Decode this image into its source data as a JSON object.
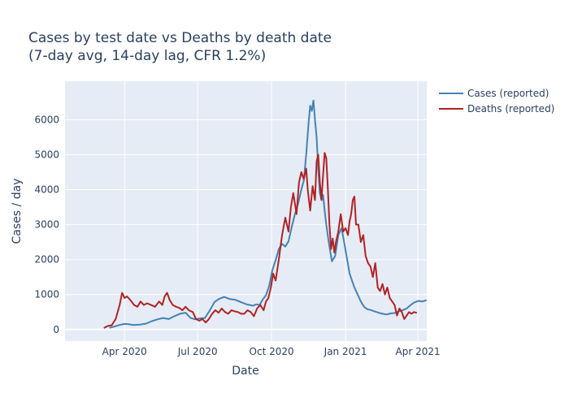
{
  "chart_data": {
    "type": "line",
    "title_line1": "Cases by test date vs Deaths by death date",
    "title_line2": "(7-day avg, 14-day lag, CFR 1.2%)",
    "xlabel": "Date",
    "ylabel": "Cases / day",
    "x_range": [
      "2020-01-18",
      "2021-04-12"
    ],
    "ylim": [
      -330,
      7100
    ],
    "x_ticks": [
      {
        "date": "2020-04-01",
        "label": "Apr 2020"
      },
      {
        "date": "2020-07-01",
        "label": "Jul 2020"
      },
      {
        "date": "2020-10-01",
        "label": "Oct 2020"
      },
      {
        "date": "2021-01-01",
        "label": "Jan 2021"
      },
      {
        "date": "2021-04-01",
        "label": "Apr 2021"
      }
    ],
    "y_ticks": [
      0,
      1000,
      2000,
      3000,
      4000,
      5000,
      6000
    ],
    "grid": true,
    "legend_position": "top-right",
    "plot_bg": "#e5ecf6",
    "series": [
      {
        "name": "Cases (reported)",
        "color": "#4682b4",
        "x": [
          "2020-03-14",
          "2020-03-20",
          "2020-03-26",
          "2020-04-01",
          "2020-04-06",
          "2020-04-12",
          "2020-04-20",
          "2020-04-28",
          "2020-05-05",
          "2020-05-12",
          "2020-05-19",
          "2020-05-26",
          "2020-06-02",
          "2020-06-09",
          "2020-06-16",
          "2020-06-22",
          "2020-06-28",
          "2020-07-04",
          "2020-07-10",
          "2020-07-16",
          "2020-07-22",
          "2020-07-28",
          "2020-08-03",
          "2020-08-10",
          "2020-08-17",
          "2020-08-24",
          "2020-08-31",
          "2020-09-04",
          "2020-09-08",
          "2020-09-12",
          "2020-09-16",
          "2020-09-20",
          "2020-09-24",
          "2020-09-28",
          "2020-10-02",
          "2020-10-06",
          "2020-10-10",
          "2020-10-14",
          "2020-10-18",
          "2020-10-22",
          "2020-10-26",
          "2020-10-30",
          "2020-11-03",
          "2020-11-07",
          "2020-11-10",
          "2020-11-13",
          "2020-11-16",
          "2020-11-18",
          "2020-11-20",
          "2020-11-22",
          "2020-11-24",
          "2020-11-26",
          "2020-11-28",
          "2020-11-30",
          "2020-12-02",
          "2020-12-04",
          "2020-12-06",
          "2020-12-08",
          "2020-12-11",
          "2020-12-15",
          "2020-12-19",
          "2020-12-23",
          "2020-12-27",
          "2020-12-31",
          "2021-01-03",
          "2021-01-06",
          "2021-01-09",
          "2021-01-12",
          "2021-01-16",
          "2021-01-20",
          "2021-01-24",
          "2021-01-28",
          "2021-02-01",
          "2021-02-06",
          "2021-02-11",
          "2021-02-16",
          "2021-02-21",
          "2021-02-26",
          "2021-03-03",
          "2021-03-08",
          "2021-03-13",
          "2021-03-18",
          "2021-03-23",
          "2021-03-28",
          "2021-04-02",
          "2021-04-06",
          "2021-04-11"
        ],
        "y": [
          50,
          90,
          130,
          160,
          150,
          130,
          140,
          170,
          240,
          290,
          330,
          300,
          380,
          450,
          480,
          330,
          290,
          320,
          330,
          540,
          790,
          880,
          930,
          870,
          850,
          780,
          720,
          700,
          680,
          720,
          700,
          860,
          980,
          1250,
          1700,
          1980,
          2300,
          2450,
          2370,
          2520,
          2930,
          3300,
          3600,
          4000,
          4250,
          5000,
          5900,
          6400,
          6250,
          6550,
          6000,
          5500,
          4600,
          3900,
          3700,
          3850,
          3400,
          3000,
          2500,
          1950,
          2100,
          2700,
          2900,
          2400,
          2000,
          1600,
          1400,
          1200,
          1000,
          800,
          650,
          580,
          560,
          520,
          480,
          450,
          430,
          460,
          470,
          520,
          550,
          600,
          700,
          780,
          820,
          800,
          830
        ]
      },
      {
        "name": "Deaths (reported)",
        "color": "#b22222",
        "x": [
          "2020-03-07",
          "2020-03-11",
          "2020-03-16",
          "2020-03-21",
          "2020-03-26",
          "2020-03-29",
          "2020-04-01",
          "2020-04-04",
          "2020-04-08",
          "2020-04-13",
          "2020-04-17",
          "2020-04-21",
          "2020-04-25",
          "2020-04-29",
          "2020-05-04",
          "2020-05-09",
          "2020-05-14",
          "2020-05-18",
          "2020-05-21",
          "2020-05-24",
          "2020-05-27",
          "2020-05-31",
          "2020-06-04",
          "2020-06-08",
          "2020-06-12",
          "2020-06-16",
          "2020-06-20",
          "2020-06-25",
          "2020-06-29",
          "2020-07-03",
          "2020-07-07",
          "2020-07-11",
          "2020-07-15",
          "2020-07-19",
          "2020-07-23",
          "2020-07-27",
          "2020-07-31",
          "2020-08-04",
          "2020-08-08",
          "2020-08-12",
          "2020-08-16",
          "2020-08-20",
          "2020-08-24",
          "2020-08-28",
          "2020-09-01",
          "2020-09-05",
          "2020-09-09",
          "2020-09-13",
          "2020-09-17",
          "2020-09-21",
          "2020-09-24",
          "2020-09-27",
          "2020-09-30",
          "2020-10-03",
          "2020-10-06",
          "2020-10-10",
          "2020-10-14",
          "2020-10-18",
          "2020-10-22",
          "2020-10-25",
          "2020-10-28",
          "2020-11-01",
          "2020-11-04",
          "2020-11-07",
          "2020-11-10",
          "2020-11-13",
          "2020-11-15",
          "2020-11-18",
          "2020-11-21",
          "2020-11-24",
          "2020-11-26",
          "2020-11-28",
          "2020-11-30",
          "2020-12-02",
          "2020-12-04",
          "2020-12-06",
          "2020-12-08",
          "2020-12-10",
          "2020-12-12",
          "2020-12-14",
          "2020-12-16",
          "2020-12-18",
          "2020-12-20",
          "2020-12-23",
          "2020-12-26",
          "2020-12-29",
          "2021-01-01",
          "2021-01-04",
          "2021-01-06",
          "2021-01-08",
          "2021-01-10",
          "2021-01-12",
          "2021-01-14",
          "2021-01-17",
          "2021-01-20",
          "2021-01-23",
          "2021-01-26",
          "2021-01-29",
          "2021-02-01",
          "2021-02-04",
          "2021-02-07",
          "2021-02-10",
          "2021-02-13",
          "2021-02-16",
          "2021-02-19",
          "2021-02-22",
          "2021-02-25",
          "2021-02-28",
          "2021-03-03",
          "2021-03-06",
          "2021-03-09",
          "2021-03-12",
          "2021-03-15",
          "2021-03-18",
          "2021-03-21",
          "2021-03-24",
          "2021-03-27",
          "2021-03-30"
        ],
        "y": [
          50,
          100,
          120,
          300,
          700,
          1050,
          900,
          950,
          850,
          700,
          650,
          800,
          700,
          750,
          700,
          650,
          800,
          700,
          950,
          1050,
          850,
          700,
          650,
          620,
          550,
          650,
          550,
          500,
          300,
          250,
          300,
          200,
          300,
          450,
          550,
          480,
          600,
          500,
          450,
          550,
          520,
          500,
          450,
          450,
          550,
          500,
          380,
          600,
          700,
          550,
          800,
          900,
          1200,
          1600,
          1400,
          2000,
          2700,
          3200,
          2800,
          3500,
          3900,
          3300,
          4200,
          4500,
          4300,
          4600,
          4000,
          3400,
          4100,
          3700,
          4800,
          5000,
          4200,
          3700,
          4400,
          5050,
          4900,
          4000,
          3000,
          2300,
          2600,
          2200,
          2500,
          2800,
          3300,
          2800,
          2900,
          2700,
          3100,
          3300,
          3700,
          3800,
          3000,
          3000,
          2500,
          2700,
          2100,
          1900,
          1800,
          1500,
          1900,
          1200,
          1100,
          1300,
          1000,
          1200,
          900,
          800,
          700,
          400,
          600,
          500,
          300,
          400,
          500,
          450,
          500,
          480
        ]
      }
    ]
  }
}
